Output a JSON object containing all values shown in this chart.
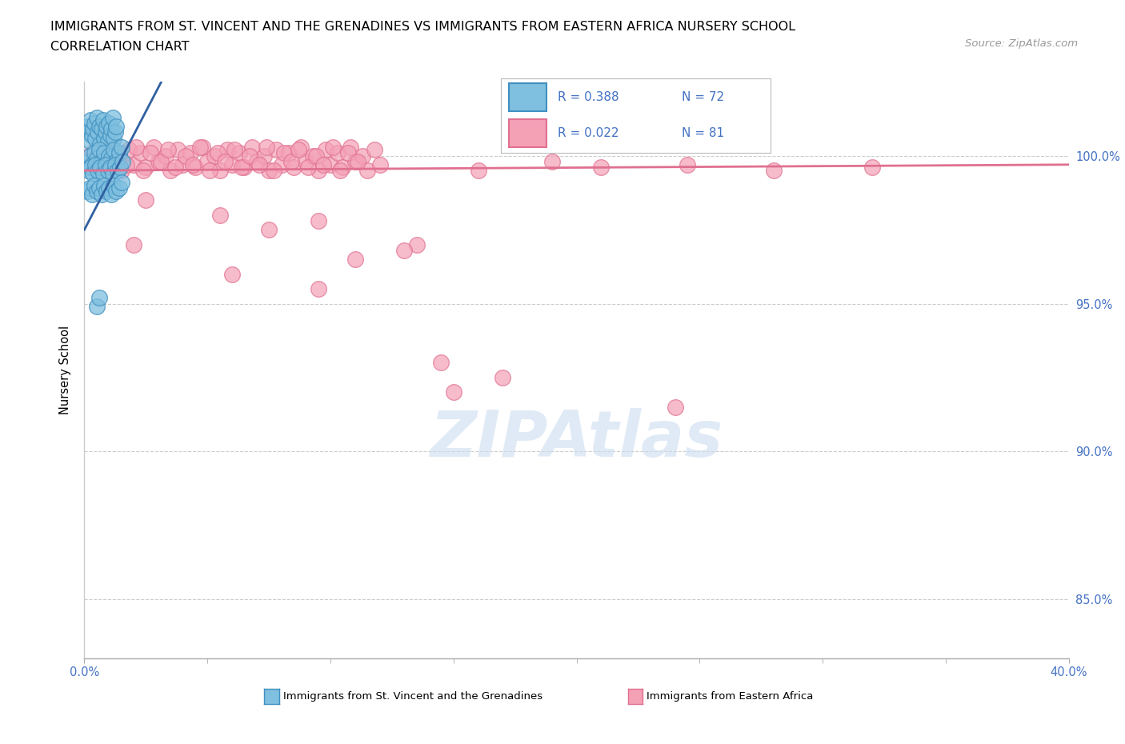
{
  "title_line1": "IMMIGRANTS FROM ST. VINCENT AND THE GRENADINES VS IMMIGRANTS FROM EASTERN AFRICA NURSERY SCHOOL",
  "title_line2": "CORRELATION CHART",
  "source": "Source: ZipAtlas.com",
  "ylabel": "Nursery School",
  "ytick_values": [
    85.0,
    90.0,
    95.0,
    100.0
  ],
  "xlim": [
    0.0,
    40.0
  ],
  "ylim": [
    83.0,
    102.5
  ],
  "legend_R1": "R = 0.388",
  "legend_N1": "N = 72",
  "legend_R2": "R = 0.022",
  "legend_N2": "N = 81",
  "color_blue": "#7fbfdf",
  "color_pink": "#f4a0b5",
  "color_blue_line": "#3060a0",
  "color_pink_line": "#e07090",
  "color_axis_label": "#4472c4",
  "watermark_color": "#ccddf0",
  "blue_scatter_x": [
    0.1,
    0.15,
    0.2,
    0.25,
    0.3,
    0.35,
    0.4,
    0.45,
    0.5,
    0.55,
    0.6,
    0.65,
    0.7,
    0.75,
    0.8,
    0.85,
    0.9,
    0.95,
    1.0,
    1.05,
    1.1,
    1.15,
    1.2,
    1.25,
    1.3,
    0.1,
    0.2,
    0.3,
    0.4,
    0.5,
    0.6,
    0.7,
    0.8,
    0.9,
    1.0,
    1.1,
    1.2,
    1.3,
    1.4,
    1.5,
    0.15,
    0.25,
    0.35,
    0.45,
    0.55,
    0.65,
    0.75,
    0.85,
    0.95,
    1.05,
    1.15,
    1.25,
    1.35,
    1.45,
    1.55,
    0.1,
    0.2,
    0.3,
    0.4,
    0.5,
    0.6,
    0.7,
    0.8,
    0.9,
    1.0,
    1.1,
    1.2,
    1.3,
    1.4,
    1.5,
    0.5,
    0.6
  ],
  "blue_scatter_y": [
    100.8,
    101.0,
    100.5,
    101.2,
    100.7,
    100.9,
    101.1,
    100.6,
    101.3,
    100.8,
    101.0,
    100.4,
    100.9,
    101.2,
    100.6,
    100.8,
    101.0,
    100.5,
    101.1,
    100.7,
    100.9,
    101.3,
    100.6,
    100.8,
    101.0,
    99.8,
    100.0,
    99.7,
    100.1,
    99.9,
    100.2,
    99.8,
    100.1,
    99.7,
    100.0,
    99.9,
    100.2,
    99.8,
    100.1,
    100.3,
    99.5,
    99.6,
    99.4,
    99.7,
    99.5,
    99.6,
    99.4,
    99.7,
    99.5,
    99.6,
    99.4,
    99.7,
    99.5,
    99.6,
    99.8,
    98.8,
    98.9,
    98.7,
    99.0,
    98.8,
    98.9,
    98.7,
    99.0,
    98.8,
    98.9,
    98.7,
    99.0,
    98.8,
    98.9,
    99.1,
    94.9,
    95.2
  ],
  "pink_scatter_x": [
    0.3,
    0.6,
    0.8,
    1.0,
    1.3,
    1.5,
    1.8,
    2.0,
    2.3,
    2.5,
    2.8,
    3.0,
    3.3,
    3.5,
    3.8,
    4.0,
    4.3,
    4.5,
    4.8,
    5.0,
    5.3,
    5.5,
    5.8,
    6.0,
    6.3,
    6.5,
    6.8,
    7.0,
    7.3,
    7.5,
    7.8,
    8.0,
    8.3,
    8.5,
    8.8,
    9.0,
    9.3,
    9.5,
    9.8,
    10.0,
    10.3,
    10.5,
    10.8,
    11.0,
    11.3,
    11.5,
    11.8,
    12.0,
    0.4,
    0.7,
    1.1,
    1.4,
    1.7,
    2.1,
    2.4,
    2.7,
    3.1,
    3.4,
    3.7,
    4.1,
    4.4,
    4.7,
    5.1,
    5.4,
    5.7,
    6.1,
    6.4,
    6.7,
    7.1,
    7.4,
    7.7,
    8.1,
    8.4,
    8.7,
    9.1,
    9.4,
    9.7,
    10.1,
    10.4,
    10.7,
    11.1
  ],
  "pink_scatter_y": [
    100.1,
    99.6,
    100.3,
    99.8,
    100.0,
    99.5,
    100.2,
    99.7,
    100.1,
    99.6,
    100.3,
    99.8,
    100.0,
    99.5,
    100.2,
    99.7,
    100.1,
    99.6,
    100.3,
    99.8,
    100.0,
    99.5,
    100.2,
    99.7,
    100.1,
    99.6,
    100.3,
    99.8,
    100.0,
    99.5,
    100.2,
    99.7,
    100.1,
    99.6,
    100.3,
    99.8,
    100.0,
    99.5,
    100.2,
    99.7,
    100.1,
    99.6,
    100.3,
    99.8,
    100.0,
    99.5,
    100.2,
    99.7,
    99.9,
    100.2,
    99.6,
    100.0,
    99.7,
    100.3,
    99.5,
    100.1,
    99.8,
    100.2,
    99.6,
    100.0,
    99.7,
    100.3,
    99.5,
    100.1,
    99.8,
    100.2,
    99.6,
    100.0,
    99.7,
    100.3,
    99.5,
    100.1,
    99.8,
    100.2,
    99.6,
    100.0,
    99.7,
    100.3,
    99.5,
    100.1,
    99.8
  ],
  "pink_outlier_x": [
    2.5,
    5.5,
    7.5,
    9.5,
    11.0,
    13.5,
    16.0,
    19.0,
    21.0,
    24.5,
    28.0,
    32.0,
    2.0,
    6.0,
    9.5,
    13.0,
    17.0,
    24.0,
    14.5,
    15.0
  ],
  "pink_outlier_y": [
    98.5,
    98.0,
    97.5,
    97.8,
    96.5,
    97.0,
    99.5,
    99.8,
    99.6,
    99.7,
    99.5,
    99.6,
    97.0,
    96.0,
    95.5,
    96.8,
    92.5,
    91.5,
    93.0,
    92.0
  ],
  "blue_trend_x0": 0.0,
  "blue_trend_y0": 97.5,
  "blue_trend_x1": 2.5,
  "blue_trend_y1": 101.5,
  "pink_trend_y_intercept": 99.5,
  "pink_trend_slope": 0.005
}
